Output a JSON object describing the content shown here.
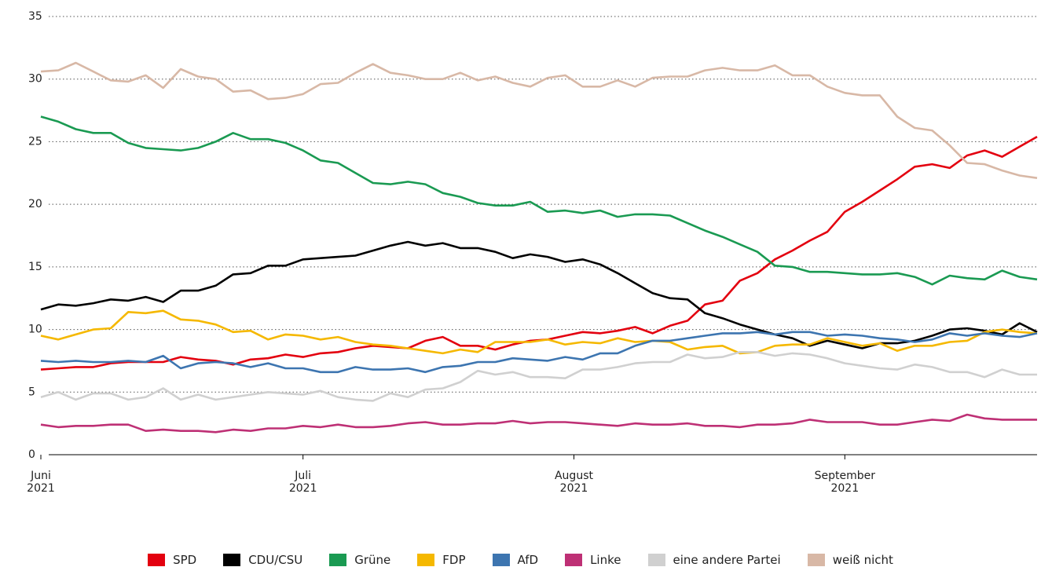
{
  "chart_data": {
    "type": "line",
    "x": [
      0,
      2,
      4,
      6,
      8,
      10,
      12,
      14,
      16,
      18,
      20,
      22,
      24,
      26,
      28,
      30,
      32,
      34,
      36,
      38,
      40,
      42,
      44,
      46,
      48,
      50,
      52,
      54,
      56,
      58,
      60,
      62,
      64,
      66,
      68,
      70,
      72,
      74,
      76,
      78,
      80,
      82,
      84,
      86,
      88,
      90,
      92,
      94,
      96,
      98,
      100,
      102,
      104,
      106,
      108,
      110,
      112,
      114
    ],
    "xlim": [
      0,
      114
    ],
    "xticks": [
      {
        "value": 0,
        "label": "Juni\n2021"
      },
      {
        "value": 30,
        "label": "Juli\n2021"
      },
      {
        "value": 61,
        "label": "August\n2021"
      },
      {
        "value": 92,
        "label": "September\n2021"
      }
    ],
    "ylim": [
      0,
      35
    ],
    "yticks": [
      0,
      5,
      10,
      15,
      20,
      25,
      30,
      35
    ],
    "grid": true,
    "series": [
      {
        "name": "SPD",
        "color": "#e3000f",
        "values": [
          6.8,
          6.9,
          7.0,
          7.0,
          7.3,
          7.4,
          7.4,
          7.4,
          7.8,
          7.6,
          7.5,
          7.2,
          7.6,
          7.7,
          8.0,
          7.8,
          8.1,
          8.2,
          8.5,
          8.7,
          8.6,
          8.5,
          9.1,
          9.4,
          8.7,
          8.7,
          8.4,
          8.8,
          9.1,
          9.2,
          9.5,
          9.8,
          9.7,
          9.9,
          10.2,
          9.7,
          10.3,
          10.7,
          12.0,
          12.3,
          13.9,
          14.5,
          15.6,
          16.3,
          17.1,
          17.8,
          19.4,
          20.2,
          21.1,
          22.0,
          23.0,
          23.2,
          22.9,
          23.9,
          24.3,
          23.8,
          24.6,
          25.4
        ]
      },
      {
        "name": "CDU/CSU",
        "color": "#000000",
        "values": [
          11.6,
          12.0,
          11.9,
          12.1,
          12.4,
          12.3,
          12.6,
          12.2,
          13.1,
          13.1,
          13.5,
          14.4,
          14.5,
          15.1,
          15.1,
          15.6,
          15.7,
          15.8,
          15.9,
          16.3,
          16.7,
          17.0,
          16.7,
          16.9,
          16.5,
          16.5,
          16.2,
          15.7,
          16.0,
          15.8,
          15.4,
          15.6,
          15.2,
          14.5,
          13.7,
          12.9,
          12.5,
          12.4,
          11.3,
          10.9,
          10.4,
          10.0,
          9.6,
          9.3,
          8.7,
          9.1,
          8.8,
          8.5,
          8.9,
          8.9,
          9.1,
          9.5,
          10.0,
          10.1,
          9.9,
          9.6,
          10.5,
          9.8
        ]
      },
      {
        "name": "Grüne",
        "color": "#1a9a52",
        "values": [
          27.0,
          26.6,
          26.0,
          25.7,
          25.7,
          24.9,
          24.5,
          24.4,
          24.3,
          24.5,
          25.0,
          25.7,
          25.2,
          25.2,
          24.9,
          24.3,
          23.5,
          23.3,
          22.5,
          21.7,
          21.6,
          21.8,
          21.6,
          20.9,
          20.6,
          20.1,
          19.9,
          19.9,
          20.2,
          19.4,
          19.5,
          19.3,
          19.5,
          19.0,
          19.2,
          19.2,
          19.1,
          18.5,
          17.9,
          17.4,
          16.8,
          16.2,
          15.1,
          15.0,
          14.6,
          14.6,
          14.5,
          14.4,
          14.4,
          14.5,
          14.2,
          13.6,
          14.3,
          14.1,
          14.0,
          14.7,
          14.2,
          14.0
        ]
      },
      {
        "name": "FDP",
        "color": "#f5b800",
        "values": [
          9.5,
          9.2,
          9.6,
          10.0,
          10.1,
          11.4,
          11.3,
          11.5,
          10.8,
          10.7,
          10.4,
          9.8,
          9.9,
          9.2,
          9.6,
          9.5,
          9.2,
          9.4,
          9.0,
          8.8,
          8.7,
          8.5,
          8.3,
          8.1,
          8.4,
          8.2,
          9.0,
          9.0,
          9.0,
          9.2,
          8.8,
          9.0,
          8.9,
          9.3,
          9.0,
          9.1,
          9.0,
          8.4,
          8.6,
          8.7,
          8.1,
          8.2,
          8.7,
          8.8,
          8.8,
          9.3,
          9.0,
          8.7,
          8.9,
          8.3,
          8.7,
          8.7,
          9.0,
          9.1,
          9.8,
          10.0,
          9.8,
          9.7
        ]
      },
      {
        "name": "AfD",
        "color": "#3d75b0",
        "values": [
          7.5,
          7.4,
          7.5,
          7.4,
          7.4,
          7.5,
          7.4,
          7.9,
          6.9,
          7.3,
          7.4,
          7.3,
          7.0,
          7.3,
          6.9,
          6.9,
          6.6,
          6.6,
          7.0,
          6.8,
          6.8,
          6.9,
          6.6,
          7.0,
          7.1,
          7.4,
          7.4,
          7.7,
          7.6,
          7.5,
          7.8,
          7.6,
          8.1,
          8.1,
          8.7,
          9.1,
          9.1,
          9.3,
          9.5,
          9.7,
          9.7,
          9.8,
          9.6,
          9.8,
          9.8,
          9.5,
          9.6,
          9.5,
          9.3,
          9.2,
          9.0,
          9.2,
          9.7,
          9.5,
          9.7,
          9.5,
          9.4,
          9.7
        ]
      },
      {
        "name": "Linke",
        "color": "#be3075",
        "values": [
          2.4,
          2.2,
          2.3,
          2.3,
          2.4,
          2.4,
          1.9,
          2.0,
          1.9,
          1.9,
          1.8,
          2.0,
          1.9,
          2.1,
          2.1,
          2.3,
          2.2,
          2.4,
          2.2,
          2.2,
          2.3,
          2.5,
          2.6,
          2.4,
          2.4,
          2.5,
          2.5,
          2.7,
          2.5,
          2.6,
          2.6,
          2.5,
          2.4,
          2.3,
          2.5,
          2.4,
          2.4,
          2.5,
          2.3,
          2.3,
          2.2,
          2.4,
          2.4,
          2.5,
          2.8,
          2.6,
          2.6,
          2.6,
          2.4,
          2.4,
          2.6,
          2.8,
          2.7,
          3.2,
          2.9,
          2.8,
          2.8,
          2.8
        ]
      },
      {
        "name": "eine andere Partei",
        "color": "#d0d0d0",
        "values": [
          4.6,
          5.0,
          4.4,
          4.9,
          4.9,
          4.4,
          4.6,
          5.3,
          4.4,
          4.8,
          4.4,
          4.6,
          4.8,
          5.0,
          4.9,
          4.8,
          5.1,
          4.6,
          4.4,
          4.3,
          4.9,
          4.6,
          5.2,
          5.3,
          5.8,
          6.7,
          6.4,
          6.6,
          6.2,
          6.2,
          6.1,
          6.8,
          6.8,
          7.0,
          7.3,
          7.4,
          7.4,
          8.0,
          7.7,
          7.8,
          8.2,
          8.2,
          7.9,
          8.1,
          8.0,
          7.7,
          7.3,
          7.1,
          6.9,
          6.8,
          7.2,
          7.0,
          6.6,
          6.6,
          6.2,
          6.8,
          6.4,
          6.4
        ]
      },
      {
        "name": "weiß nicht",
        "color": "#d8b8a6",
        "values": [
          30.6,
          30.7,
          31.3,
          30.6,
          29.9,
          29.8,
          30.3,
          29.3,
          30.8,
          30.2,
          30.0,
          29.0,
          29.1,
          28.4,
          28.5,
          28.8,
          29.6,
          29.7,
          30.5,
          31.2,
          30.5,
          30.3,
          30.0,
          30.0,
          30.5,
          29.9,
          30.2,
          29.7,
          29.4,
          30.1,
          30.3,
          29.4,
          29.4,
          29.9,
          29.4,
          30.1,
          30.2,
          30.2,
          30.7,
          30.9,
          30.7,
          30.7,
          31.1,
          30.3,
          30.3,
          29.4,
          28.9,
          28.7,
          28.7,
          27.0,
          26.1,
          25.9,
          24.7,
          23.3,
          23.2,
          22.7,
          22.3,
          22.1
        ]
      }
    ]
  }
}
